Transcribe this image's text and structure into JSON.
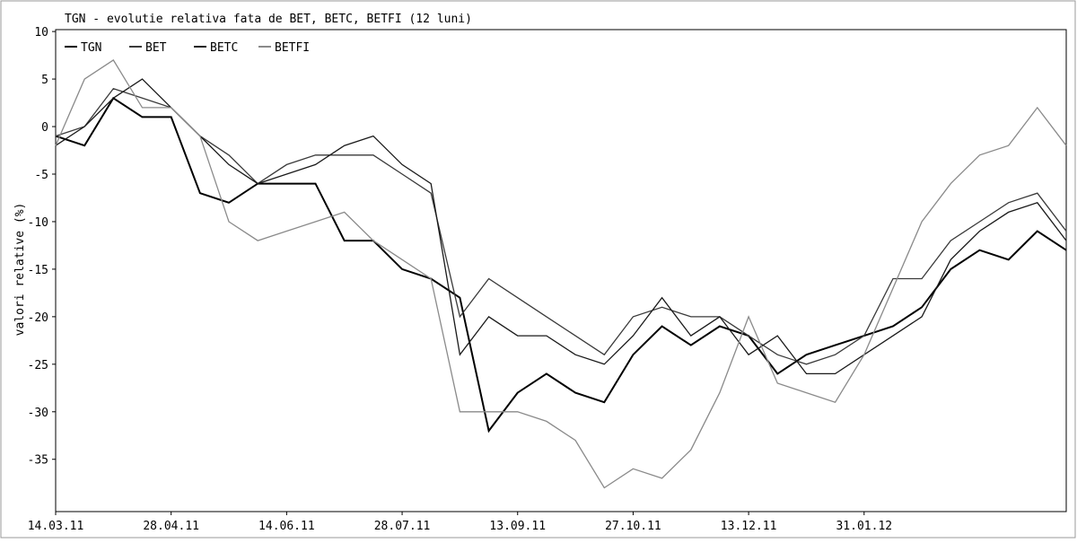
{
  "chart_data": {
    "type": "line",
    "title": "TGN - evolutie relativa fata de BET, BETC, BETFI (12 luni)",
    "y_label": "valori relative (%)",
    "categories": [
      "14.03.11",
      null,
      null,
      null,
      "28.04.11",
      null,
      null,
      null,
      "14.06.11",
      null,
      null,
      null,
      "28.07.11",
      null,
      null,
      null,
      "13.09.11",
      null,
      null,
      null,
      "27.10.11",
      null,
      null,
      null,
      "13.12.11",
      null,
      null,
      null,
      "31.01.12",
      null,
      null,
      null,
      null,
      null,
      null,
      null
    ],
    "series": [
      {
        "name": "TGN",
        "color": "#000000",
        "values": [
          -1,
          -2,
          3,
          1,
          1,
          -7,
          -8,
          -6,
          -6,
          -6,
          -12,
          -12,
          -15,
          -16,
          -18,
          -32,
          -28,
          -26,
          -28,
          -29,
          -24,
          -21,
          -23,
          -21,
          -22,
          -26,
          -24,
          -23,
          -22,
          -21,
          -19,
          -15,
          -13,
          -14,
          -11,
          -13
        ]
      },
      {
        "name": "BET",
        "color": "#3a3a3a",
        "values": [
          -1,
          0,
          4,
          3,
          2,
          -1,
          -3,
          -6,
          -4,
          -3,
          -3,
          -3,
          -5,
          -7,
          -20,
          -16,
          -18,
          -20,
          -22,
          -24,
          -20,
          -19,
          -20,
          -20,
          -22,
          -24,
          -25,
          -24,
          -22,
          -16,
          -16,
          -12,
          -10,
          -8,
          -7,
          -11
        ]
      },
      {
        "name": "BETC",
        "color": "#1a1a1a",
        "values": [
          -2,
          0,
          3,
          5,
          2,
          -1,
          -4,
          -6,
          -5,
          -4,
          -2,
          -1,
          -4,
          -6,
          -24,
          -20,
          -22,
          -22,
          -24,
          -25,
          -22,
          -18,
          -22,
          -20,
          -24,
          -22,
          -26,
          -26,
          -24,
          -22,
          -20,
          -14,
          -11,
          -9,
          -8,
          -12
        ]
      },
      {
        "name": "BETFI",
        "color": "#8a8a8a",
        "values": [
          -2,
          5,
          7,
          2,
          2,
          -1,
          -10,
          -12,
          -11,
          -10,
          -9,
          -12,
          -14,
          -16,
          -30,
          -30,
          -30,
          -31,
          -33,
          -38,
          -36,
          -37,
          -34,
          -28,
          -20,
          -27,
          -28,
          -29,
          -24,
          -17,
          -10,
          -6,
          -3,
          -2,
          2,
          -2
        ]
      }
    ],
    "ylim": [
      -40.5,
      10.2
    ],
    "yticks": [
      10,
      5,
      0,
      -5,
      -10,
      -15,
      -20,
      -25,
      -30,
      -35
    ],
    "legend": "upper left",
    "grid": false
  }
}
